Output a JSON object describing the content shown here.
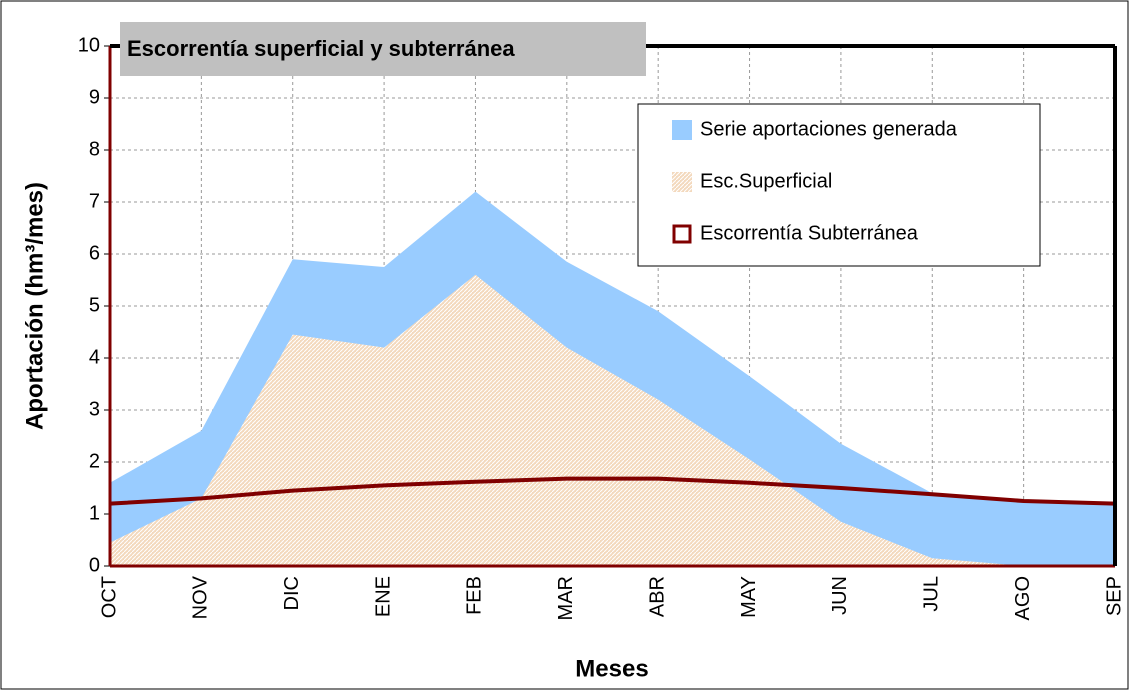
{
  "chart_data": {
    "type": "area",
    "title": "Escorrentía superficial y subterránea",
    "x_label": "Meses",
    "y_label": "Aportación (hm³/mes)",
    "categories": [
      "OCT",
      "NOV",
      "DIC",
      "ENE",
      "FEB",
      "MAR",
      "ABR",
      "MAY",
      "JUN",
      "JUL",
      "AGO",
      "SEP"
    ],
    "series": [
      {
        "name": "Serie aportaciones generada",
        "type": "area",
        "color": "#99ccff",
        "values": [
          1.6,
          2.6,
          5.9,
          5.75,
          7.2,
          5.85,
          4.9,
          3.65,
          2.35,
          1.4,
          1.25,
          1.2
        ]
      },
      {
        "name": "Esc.Superficial",
        "type": "area",
        "color": "#f3d9bd",
        "values": [
          0.45,
          1.3,
          4.45,
          4.2,
          5.6,
          4.2,
          3.2,
          2.05,
          0.85,
          0.15,
          0.0,
          0.0
        ]
      },
      {
        "name": "Escorrentía Subterránea",
        "type": "line",
        "color": "#800000",
        "values": [
          1.2,
          1.3,
          1.45,
          1.55,
          1.62,
          1.68,
          1.68,
          1.6,
          1.5,
          1.38,
          1.25,
          1.2
        ]
      }
    ],
    "ylim": [
      0,
      10
    ],
    "yticks": [
      0,
      1,
      2,
      3,
      4,
      5,
      6,
      7,
      8,
      9,
      10
    ],
    "grid": true,
    "legend_position": "upper right"
  }
}
